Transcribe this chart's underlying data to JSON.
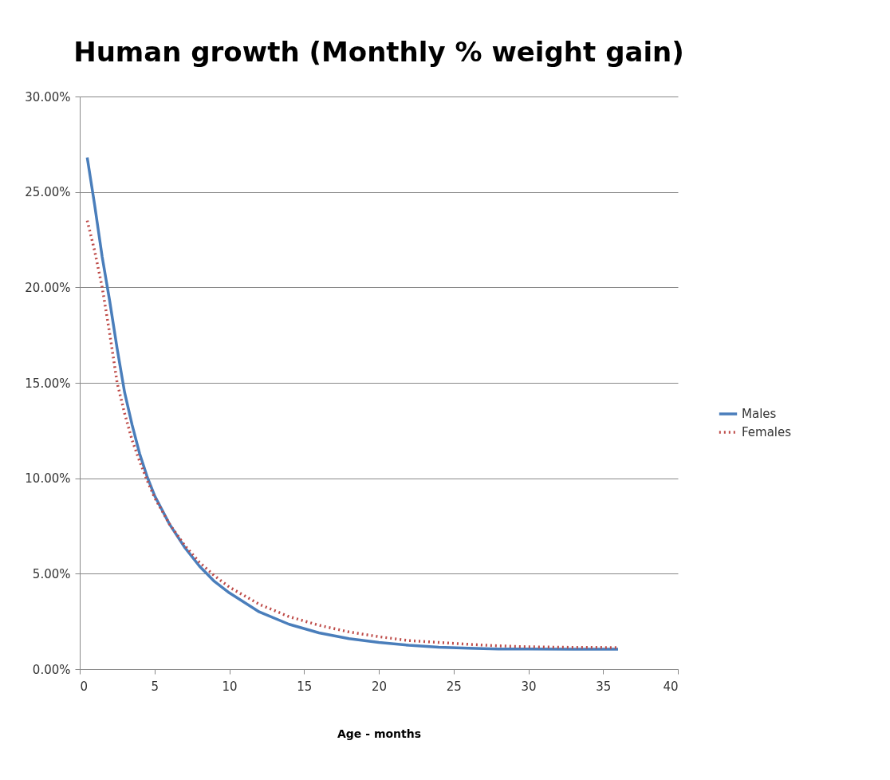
{
  "chart_data": {
    "type": "line",
    "title": "Human growth (Monthly % weight gain)",
    "xlabel": "Age - months",
    "x": [
      0.5,
      1,
      1.5,
      2,
      2.5,
      3,
      3.5,
      4,
      4.5,
      5,
      6,
      7,
      8,
      9,
      10,
      12,
      14,
      16,
      18,
      20,
      22,
      24,
      26,
      28,
      30,
      33,
      36
    ],
    "series": [
      {
        "name": "Males",
        "color": "#4a7ebb",
        "line_style": "solid",
        "values": [
          26.8,
          24.3,
          21.6,
          19.3,
          16.8,
          14.5,
          12.8,
          11.3,
          10.1,
          9.1,
          7.6,
          6.4,
          5.4,
          4.6,
          4.0,
          3.0,
          2.35,
          1.9,
          1.6,
          1.4,
          1.25,
          1.15,
          1.1,
          1.05,
          1.05,
          1.04,
          1.04
        ]
      },
      {
        "name": "Females",
        "color": "#be4b48",
        "line_style": "dotted",
        "values": [
          23.5,
          21.9,
          20.0,
          17.6,
          15.0,
          13.4,
          12.0,
          10.9,
          9.9,
          9.0,
          7.6,
          6.5,
          5.6,
          4.9,
          4.3,
          3.4,
          2.75,
          2.3,
          1.95,
          1.7,
          1.5,
          1.4,
          1.3,
          1.22,
          1.17,
          1.14,
          1.13
        ]
      }
    ],
    "xlim": [
      0,
      40
    ],
    "xticks": [
      0,
      5,
      10,
      15,
      20,
      25,
      30,
      35,
      40
    ],
    "ylim": [
      0,
      30
    ],
    "yticks": [
      {
        "value": 0,
        "label": "0.00%"
      },
      {
        "value": 5,
        "label": "5.00%"
      },
      {
        "value": 10,
        "label": "10.00%"
      },
      {
        "value": 15,
        "label": "15.00%"
      },
      {
        "value": 20,
        "label": "20.00%"
      },
      {
        "value": 25,
        "label": "25.00%"
      },
      {
        "value": 30,
        "label": "30.00%"
      }
    ],
    "grid": "y",
    "legend": "right",
    "marker": "none"
  }
}
